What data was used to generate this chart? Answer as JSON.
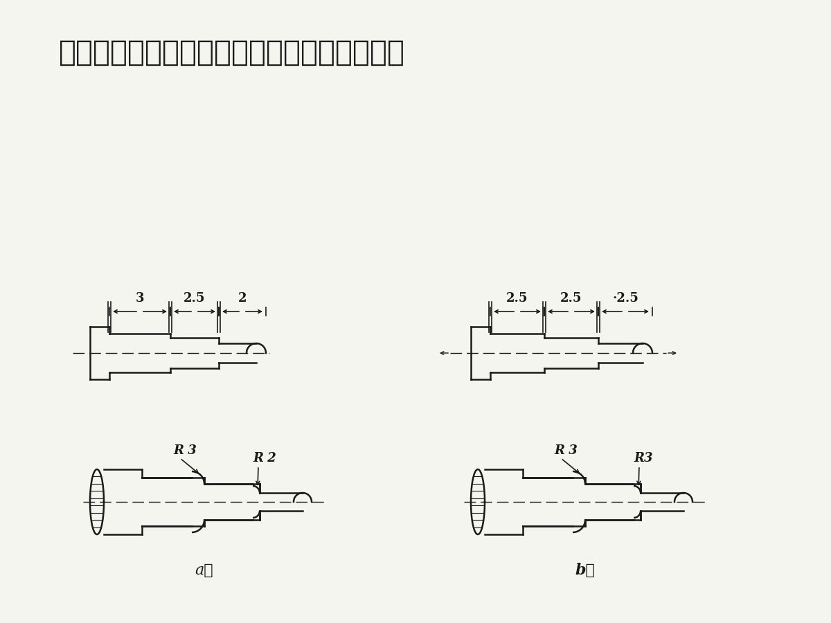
{
  "title": "尽量做到刀具规格统一，减少换刀，提高效率",
  "bg_color": "#f5f5f0",
  "line_color": "#1a1a1a",
  "label_a": "a）",
  "label_b": "b）",
  "dim_labels_a": [
    "3",
    "2.5",
    "2"
  ],
  "dim_labels_b": [
    "2.5",
    "2.5",
    "·2.5"
  ],
  "radius_labels_a": [
    "R 3",
    "R 2"
  ],
  "radius_labels_b": [
    "R 3",
    "R3"
  ],
  "title_fontsize": 30,
  "dim_fontsize": 13,
  "label_fontsize": 14
}
